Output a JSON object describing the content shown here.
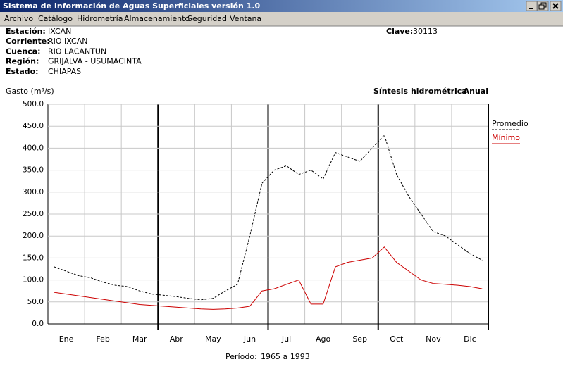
{
  "window": {
    "title": "Sistema de Información de Aguas Superficiales  versión 1.0"
  },
  "menu": [
    "Archivo",
    "Catálogo",
    "Hidrometría",
    "Almacenamiento",
    "Seguridad",
    "Ventana"
  ],
  "info": [
    {
      "label": "Estación:",
      "value": "IXCAN"
    },
    {
      "label": "Corriente:",
      "value": "RIO IXCAN"
    },
    {
      "label": "Cuenca:",
      "value": "RIO LACANTUN"
    },
    {
      "label": "Región:",
      "value": "GRIJALVA - USUMACINTA"
    },
    {
      "label": "Estado:",
      "value": "CHIAPAS"
    }
  ],
  "clave": {
    "label": "Clave:",
    "value": "30113"
  },
  "chart_data": {
    "type": "line",
    "title": "Síntesis hidrométrica",
    "subtitle": "Anual",
    "y_label": "Gasto (m³/s)",
    "categories": [
      null,
      "Ene",
      null,
      null,
      "Feb",
      null,
      null,
      "Mar",
      null,
      null,
      "Abr",
      null,
      null,
      "May",
      null,
      null,
      "Jun",
      null,
      null,
      "Jul",
      null,
      null,
      "Ago",
      null,
      null,
      "Sep",
      null,
      null,
      "Oct",
      null,
      null,
      "Nov",
      null,
      null,
      "Dic",
      null
    ],
    "series": [
      {
        "name": "Promedio",
        "color": "#000000",
        "dashed": true,
        "values": [
          130,
          120,
          110,
          105,
          95,
          88,
          85,
          75,
          68,
          65,
          62,
          58,
          55,
          58,
          75,
          90,
          200,
          320,
          350,
          360,
          340,
          350,
          330,
          390,
          380,
          370,
          400,
          430,
          340,
          290,
          250,
          210,
          200,
          180,
          160,
          145
        ]
      },
      {
        "name": "Mínimo",
        "color": "#cc0000",
        "dashed": false,
        "values": [
          72,
          68,
          64,
          60,
          56,
          52,
          48,
          44,
          42,
          40,
          38,
          36,
          34,
          33,
          34,
          36,
          40,
          75,
          80,
          90,
          100,
          45,
          45,
          130,
          140,
          145,
          150,
          175,
          140,
          120,
          100,
          92,
          90,
          88,
          85,
          80
        ]
      }
    ],
    "ylim": [
      0,
      500
    ],
    "yticks": [
      {
        "value": 0,
        "label": "0.0"
      },
      {
        "value": 50,
        "label": "50.0"
      },
      {
        "value": 100,
        "label": "100.0"
      },
      {
        "value": 150,
        "label": "150.0"
      },
      {
        "value": 200,
        "label": "200.0"
      },
      {
        "value": 250,
        "label": "250.0"
      },
      {
        "value": 300,
        "label": "300.0"
      },
      {
        "value": 350,
        "label": "350.0"
      },
      {
        "value": 400,
        "label": "400.0"
      },
      {
        "value": 450,
        "label": "450.0"
      },
      {
        "value": 500,
        "label": "500.0"
      }
    ],
    "grid": true
  },
  "footer": {
    "label": "Período:",
    "value": "1965 a 1993"
  }
}
